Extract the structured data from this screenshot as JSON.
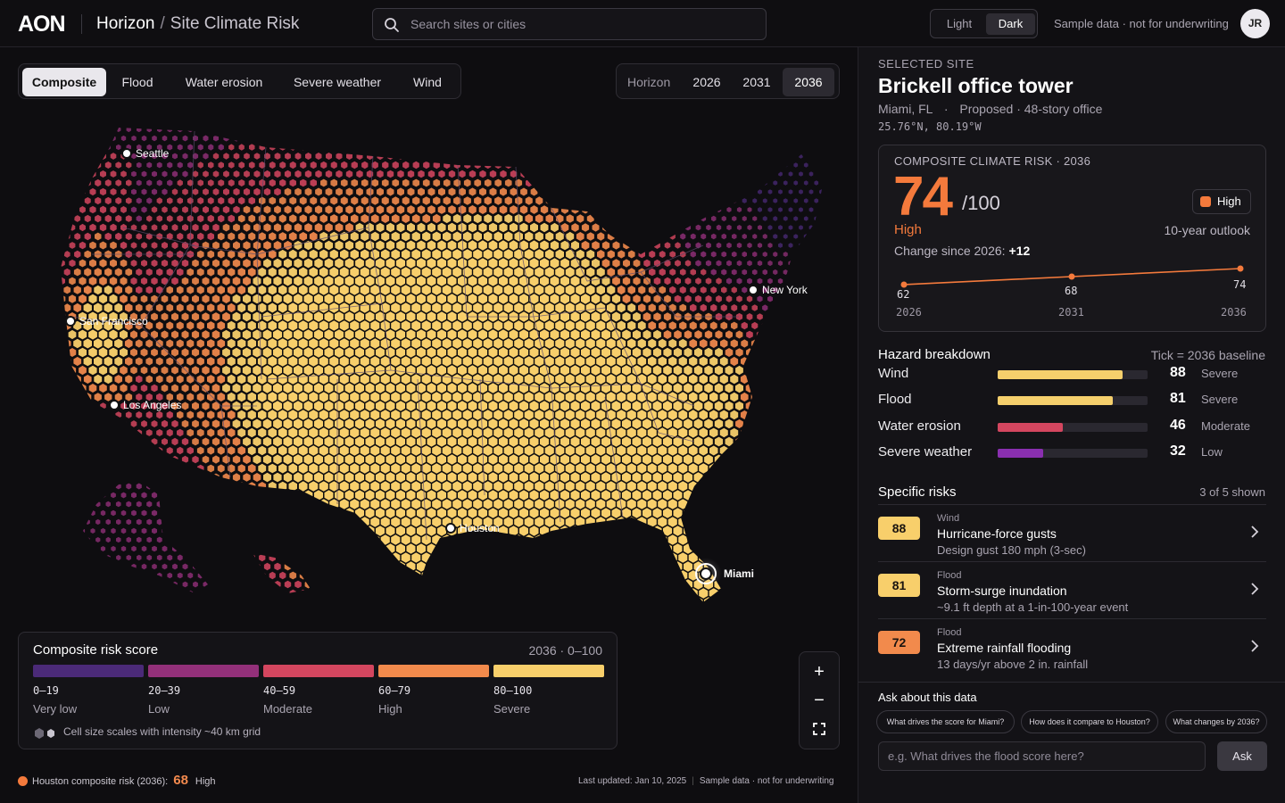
{
  "header": {
    "logo": "AON",
    "app_name": "Horizon",
    "separator": "/",
    "page_name": "Site Climate Risk",
    "search_placeholder": "Search sites or cities",
    "theme_light": "Light",
    "theme_dark": "Dark",
    "sample_notice": "Sample data · not for underwriting",
    "avatar_initials": "JR"
  },
  "layers": {
    "tabs": [
      "Composite",
      "Flood",
      "Water erosion",
      "Severe weather",
      "Wind"
    ],
    "active": "Composite"
  },
  "horizon": {
    "label": "Horizon",
    "years": [
      "2026",
      "2031",
      "2036"
    ],
    "active": "2036"
  },
  "map": {
    "cities": [
      "Seattle",
      "San Francisco",
      "Los Angeles",
      "Houston",
      "New York",
      "Miami"
    ],
    "scale_colors": [
      "#4b2a78",
      "#93307a",
      "#d4465f",
      "#f28a4c",
      "#f8cf6b"
    ]
  },
  "legend": {
    "title": "Composite risk score",
    "range": "2036 · 0–100",
    "bins": [
      {
        "range": "0–19",
        "label": "Very low",
        "color": "#4b2a78"
      },
      {
        "range": "20–39",
        "label": "Low",
        "color": "#93307a"
      },
      {
        "range": "40–59",
        "label": "Moderate",
        "color": "#d4465f"
      },
      {
        "range": "60–79",
        "label": "High",
        "color": "#f28a4c"
      },
      {
        "range": "80–100",
        "label": "Severe",
        "color": "#f8cf6b"
      }
    ],
    "note": "Cell size scales with intensity ~40 km grid"
  },
  "zoom": {
    "in": "+",
    "out": "−"
  },
  "footer": {
    "houston_label": "Houston composite risk (2036):",
    "houston_value": "68",
    "houston_level": "High",
    "updated": "Last updated: Jan 10, 2025",
    "sample": "Sample data · not for underwriting"
  },
  "site": {
    "selected_label": "SELECTED SITE",
    "name": "Brickell office tower",
    "location": "Miami, FL",
    "dot": "·",
    "status": "Proposed · 48-story office",
    "coords": "25.76°N, 80.19°W"
  },
  "score_card": {
    "title": "COMPOSITE CLIMATE RISK · 2036",
    "score": "74",
    "out_of": "/100",
    "badge": "High",
    "level": "High",
    "outlook": "10-year outlook",
    "change_label": "Change since 2026:",
    "change_value": "+12",
    "trend": [
      {
        "year": "2026",
        "value": 62
      },
      {
        "year": "2031",
        "value": 68
      },
      {
        "year": "2036",
        "value": 74
      }
    ]
  },
  "hazards": {
    "title": "Hazard breakdown",
    "note": "Tick = 2036 baseline",
    "items": [
      {
        "name": "Wind",
        "value": 88,
        "level": "Severe",
        "color": "#f5cf6c"
      },
      {
        "name": "Flood",
        "value": 81,
        "level": "Severe",
        "color": "#f5cf6c"
      },
      {
        "name": "Water erosion",
        "value": 46,
        "level": "Moderate",
        "color": "#d4465f"
      },
      {
        "name": "Severe weather",
        "value": 32,
        "level": "Low",
        "color": "#8a2fb0"
      }
    ]
  },
  "specific_risks": {
    "title": "Specific risks",
    "count": "3 of 5 shown",
    "items": [
      {
        "score": "88",
        "category": "Wind",
        "title": "Hurricane-force gusts",
        "detail": "Design gust 180 mph (3-sec)",
        "color": "#f8cf6b"
      },
      {
        "score": "81",
        "category": "Flood",
        "title": "Storm-surge inundation",
        "detail": "~9.1 ft depth at a 1-in-100-year event",
        "color": "#f8cf6b"
      },
      {
        "score": "72",
        "category": "Flood",
        "title": "Extreme rainfall flooding",
        "detail": "13 days/yr above 2 in. rainfall",
        "color": "#f28a4c"
      }
    ]
  },
  "ask": {
    "title": "Ask about this data",
    "chips": [
      "What drives the score for Miami?",
      "How does it compare to Houston?",
      "What changes by 2036?"
    ],
    "placeholder": "e.g. What drives the flood score here?",
    "button": "Ask"
  }
}
